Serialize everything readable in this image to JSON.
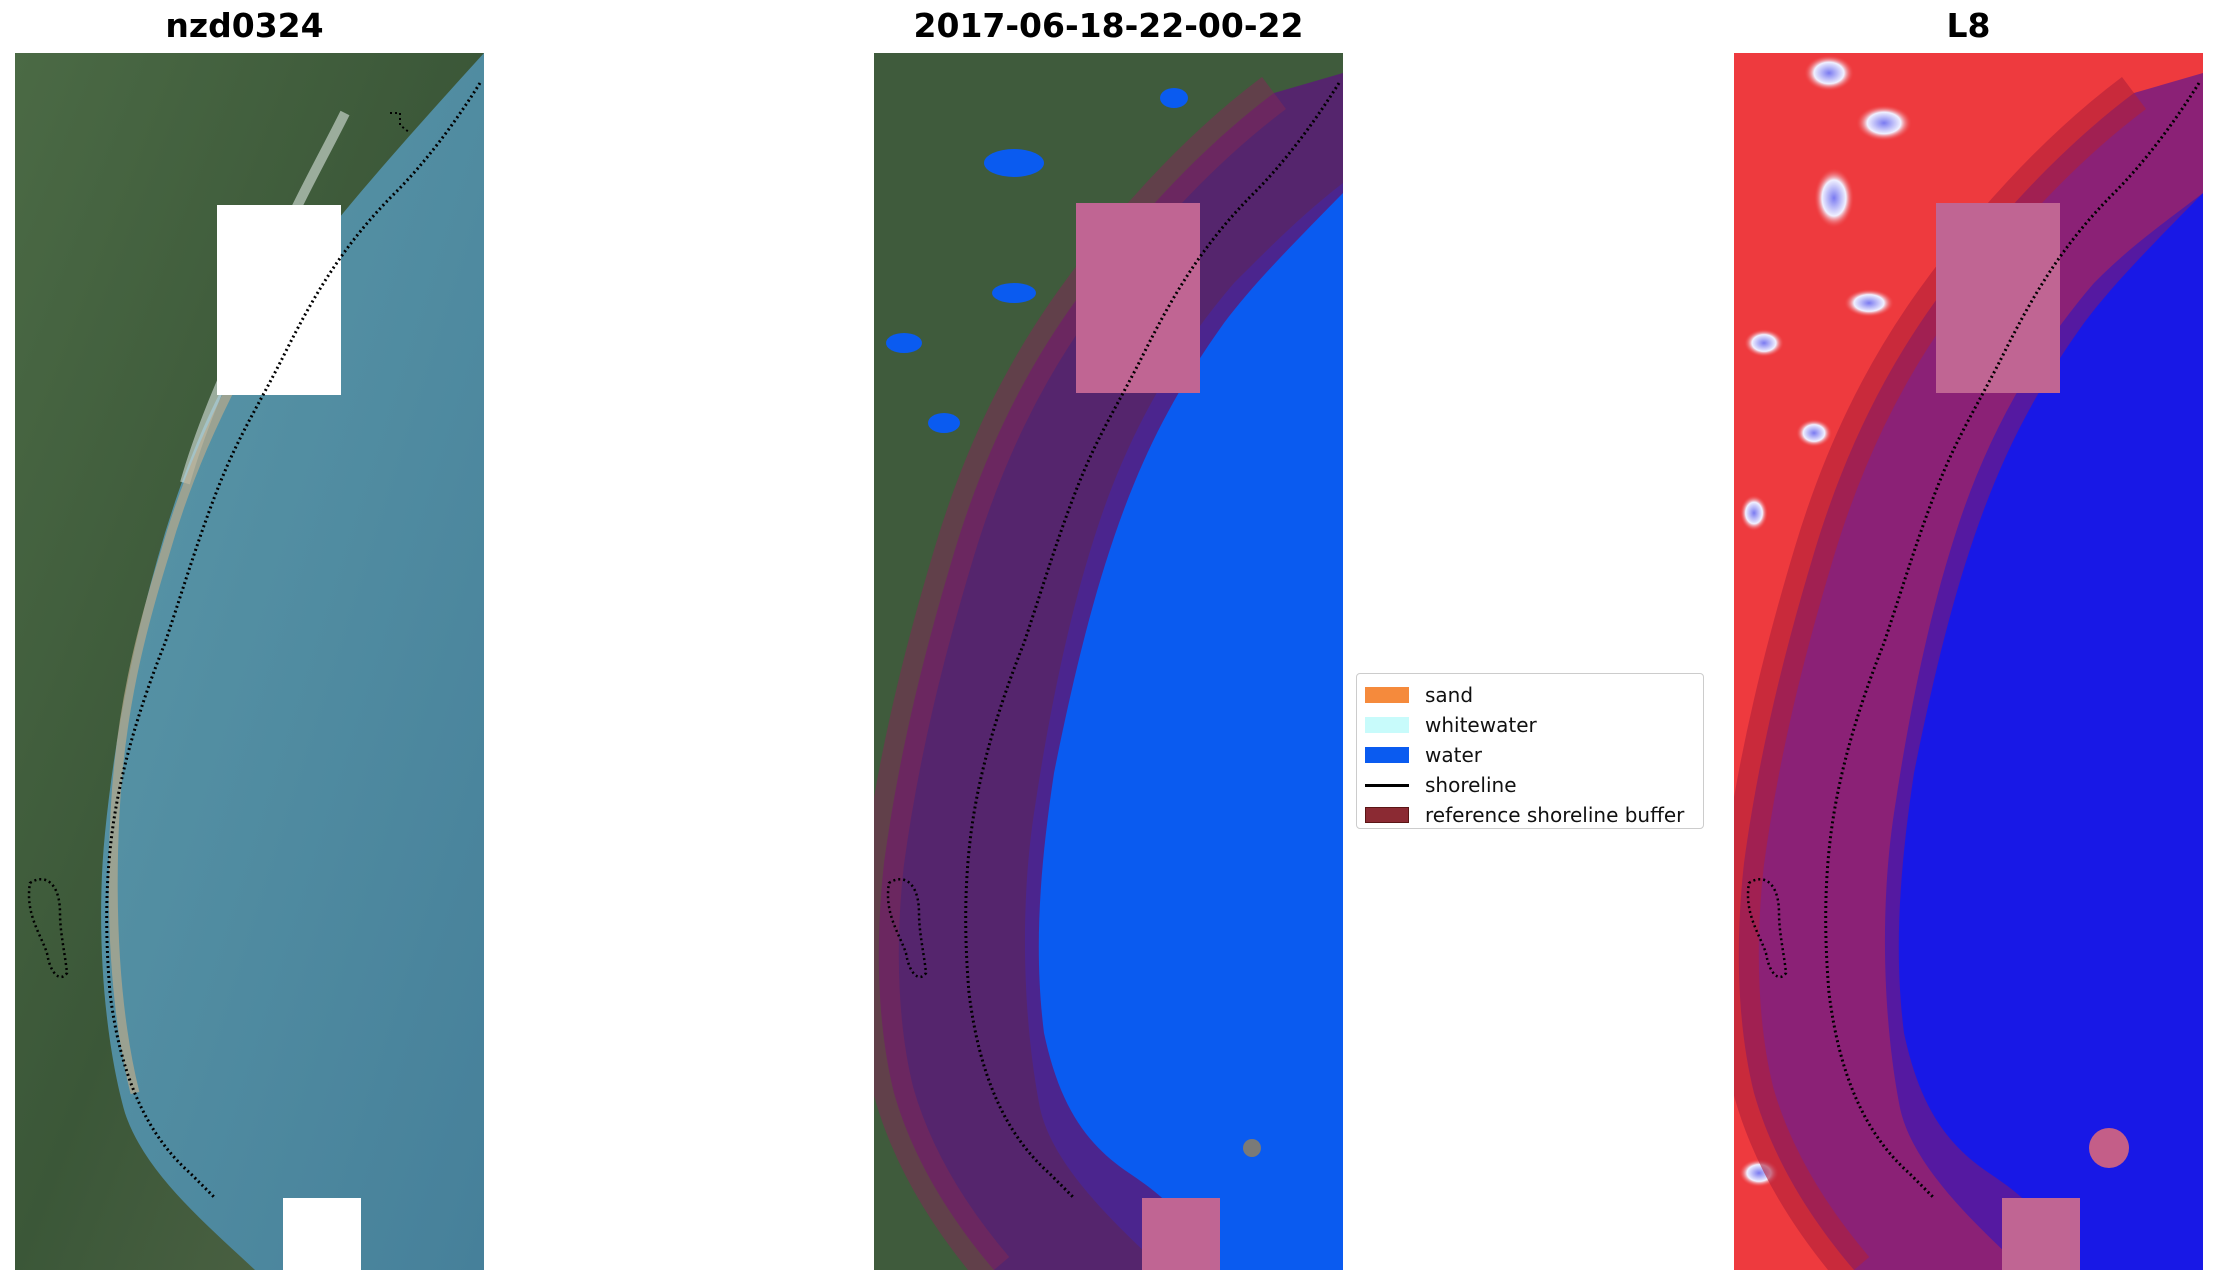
{
  "panels": [
    {
      "title": "nzd0324"
    },
    {
      "title": "2017-06-18-22-00-22"
    },
    {
      "title": "L8"
    }
  ],
  "legend": {
    "items": [
      {
        "label": "sand",
        "color": "#f58a3c",
        "kind": "patch"
      },
      {
        "label": "whitewater",
        "color": "#c8fbfb",
        "kind": "patch"
      },
      {
        "label": "water",
        "color": "#0a5bf0",
        "kind": "patch"
      },
      {
        "label": "shoreline",
        "color": "#000000",
        "kind": "line"
      },
      {
        "label": "reference shoreline buffer",
        "color": "#8b2a33",
        "kind": "patch"
      }
    ]
  },
  "colors": {
    "sea": "#4f8aa0",
    "land": "#3e5a3a",
    "water_class": "#0a5bf0",
    "buffer": "#6a2a70",
    "cloud_mask": "#ffffff",
    "index_positive": "#e8242a",
    "index_negative": "#2020e0"
  }
}
